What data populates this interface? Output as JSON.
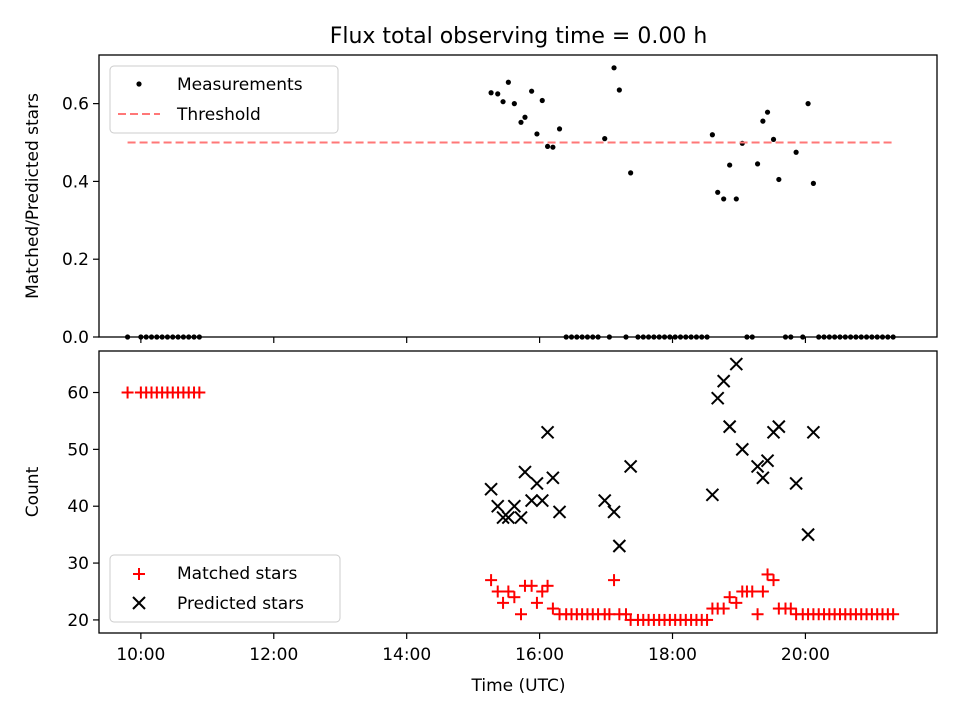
{
  "figure": {
    "title": "Flux total observing time = 0.00 h",
    "xlabel": "Time (UTC)"
  },
  "chart_data": [
    {
      "type": "scatter",
      "panel": "top",
      "xlabel": "Time (UTC)",
      "ylabel": "Matched/Predicted stars",
      "xlim": [
        9.37,
        21.98
      ],
      "ylim": [
        0,
        0.725
      ],
      "xticks": [
        {
          "value": 10,
          "label": "10:00"
        },
        {
          "value": 12,
          "label": "12:00"
        },
        {
          "value": 14,
          "label": "14:00"
        },
        {
          "value": 16,
          "label": "16:00"
        },
        {
          "value": 18,
          "label": "18:00"
        },
        {
          "value": 20,
          "label": "20:00"
        }
      ],
      "yticks": [
        {
          "value": 0,
          "label": "0.0"
        },
        {
          "value": 0.2,
          "label": "0.2"
        },
        {
          "value": 0.4,
          "label": "0.4"
        },
        {
          "value": 0.6,
          "label": "0.6"
        }
      ],
      "legend_position": "top-left",
      "series": [
        {
          "name": "Measurements",
          "marker": "dot",
          "color": "#000000",
          "x": [
            9.8,
            10.0,
            10.08,
            10.16,
            10.24,
            10.32,
            10.4,
            10.48,
            10.56,
            10.64,
            10.72,
            10.8,
            10.88,
            15.27,
            15.37,
            15.45,
            15.53,
            15.62,
            15.72,
            15.78,
            15.88,
            15.96,
            16.04,
            16.12,
            16.2,
            16.3,
            16.4,
            16.48,
            16.56,
            16.64,
            16.72,
            16.8,
            16.88,
            16.98,
            17.05,
            17.12,
            17.2,
            17.3,
            17.37,
            17.48,
            17.56,
            17.64,
            17.72,
            17.8,
            17.88,
            17.96,
            18.04,
            18.12,
            18.2,
            18.28,
            18.36,
            18.44,
            18.52,
            18.6,
            18.68,
            18.77,
            18.86,
            18.96,
            19.05,
            19.12,
            19.2,
            19.28,
            19.36,
            19.43,
            19.52,
            19.6,
            19.7,
            19.78,
            19.86,
            19.96,
            20.04,
            20.12,
            20.2,
            20.28,
            20.36,
            20.44,
            20.52,
            20.6,
            20.68,
            20.76,
            20.84,
            20.92,
            21.0,
            21.08,
            21.16,
            21.24,
            21.32
          ],
          "y": [
            0,
            0,
            0,
            0,
            0,
            0,
            0,
            0,
            0,
            0,
            0,
            0,
            0,
            0.628,
            0.625,
            0.605,
            0.655,
            0.6,
            0.552,
            0.565,
            0.632,
            0.522,
            0.608,
            0.49,
            0.488,
            0.535,
            0,
            0,
            0,
            0,
            0,
            0,
            0,
            0.51,
            0,
            0.692,
            0.635,
            0,
            0.422,
            0,
            0,
            0,
            0,
            0,
            0,
            0,
            0,
            0,
            0,
            0,
            0,
            0,
            0,
            0.52,
            0.372,
            0.355,
            0.442,
            0.355,
            0.498,
            0,
            0,
            0.445,
            0.555,
            0.578,
            0.508,
            0.405,
            0,
            0,
            0.475,
            0,
            0.6,
            0.395,
            0,
            0,
            0,
            0,
            0,
            0,
            0,
            0,
            0,
            0,
            0,
            0,
            0,
            0,
            0
          ]
        },
        {
          "name": "Threshold",
          "marker": "dashed-line",
          "color": "#ff7777",
          "x": [
            9.8,
            21.32
          ],
          "y": [
            0.5,
            0.5
          ]
        }
      ]
    },
    {
      "type": "scatter",
      "panel": "bottom",
      "xlabel": "Time (UTC)",
      "ylabel": "Count",
      "xlim": [
        9.37,
        21.98
      ],
      "ylim": [
        17.7,
        67.3
      ],
      "xticks": [
        {
          "value": 10,
          "label": "10:00"
        },
        {
          "value": 12,
          "label": "12:00"
        },
        {
          "value": 14,
          "label": "14:00"
        },
        {
          "value": 16,
          "label": "16:00"
        },
        {
          "value": 18,
          "label": "18:00"
        },
        {
          "value": 20,
          "label": "20:00"
        }
      ],
      "yticks": [
        {
          "value": 20,
          "label": "20"
        },
        {
          "value": 30,
          "label": "30"
        },
        {
          "value": 40,
          "label": "40"
        },
        {
          "value": 50,
          "label": "50"
        },
        {
          "value": 60,
          "label": "60"
        }
      ],
      "legend_position": "bottom-left",
      "series": [
        {
          "name": "Matched stars",
          "marker": "plus",
          "color": "#ff0000",
          "x": [
            9.8,
            10.0,
            10.08,
            10.16,
            10.24,
            10.32,
            10.4,
            10.48,
            10.56,
            10.64,
            10.72,
            10.8,
            10.88,
            15.27,
            15.37,
            15.45,
            15.53,
            15.62,
            15.72,
            15.78,
            15.88,
            15.96,
            16.04,
            16.12,
            16.2,
            16.3,
            16.4,
            16.48,
            16.56,
            16.64,
            16.72,
            16.8,
            16.88,
            16.98,
            17.05,
            17.12,
            17.2,
            17.3,
            17.37,
            17.48,
            17.56,
            17.64,
            17.72,
            17.8,
            17.88,
            17.96,
            18.04,
            18.12,
            18.2,
            18.28,
            18.36,
            18.44,
            18.52,
            18.6,
            18.68,
            18.77,
            18.86,
            18.96,
            19.05,
            19.12,
            19.2,
            19.28,
            19.36,
            19.43,
            19.52,
            19.6,
            19.7,
            19.78,
            19.86,
            19.96,
            20.04,
            20.12,
            20.2,
            20.28,
            20.36,
            20.44,
            20.52,
            20.6,
            20.68,
            20.76,
            20.84,
            20.92,
            21.0,
            21.08,
            21.16,
            21.24,
            21.32
          ],
          "y": [
            60,
            60,
            60,
            60,
            60,
            60,
            60,
            60,
            60,
            60,
            60,
            60,
            60,
            27,
            25,
            23,
            25,
            24,
            21,
            26,
            26,
            23,
            25,
            26,
            22,
            21,
            21,
            21,
            21,
            21,
            21,
            21,
            21,
            21,
            21,
            27,
            21,
            21,
            20,
            20,
            20,
            20,
            20,
            20,
            20,
            20,
            20,
            20,
            20,
            20,
            20,
            20,
            20,
            22,
            22,
            22,
            24,
            23,
            25,
            25,
            25,
            21,
            25,
            28,
            27,
            22,
            22,
            22,
            21,
            21,
            21,
            21,
            21,
            21,
            21,
            21,
            21,
            21,
            21,
            21,
            21,
            21,
            21,
            21,
            21,
            21,
            21
          ]
        },
        {
          "name": "Predicted stars",
          "marker": "x",
          "color": "#000000",
          "x": [
            15.27,
            15.37,
            15.45,
            15.53,
            15.62,
            15.72,
            15.78,
            15.88,
            15.96,
            16.04,
            16.12,
            16.2,
            16.3,
            16.98,
            17.12,
            17.2,
            17.37,
            18.6,
            18.68,
            18.77,
            18.86,
            18.96,
            19.05,
            19.28,
            19.36,
            19.43,
            19.52,
            19.6,
            19.86,
            20.04,
            20.12
          ],
          "y": [
            43,
            40,
            38,
            38,
            40,
            38,
            46,
            41,
            44,
            41,
            53,
            45,
            39,
            41,
            39,
            33,
            47,
            42,
            59,
            62,
            54,
            65,
            50,
            47,
            45,
            48,
            53,
            54,
            44,
            35,
            53
          ]
        }
      ]
    }
  ]
}
